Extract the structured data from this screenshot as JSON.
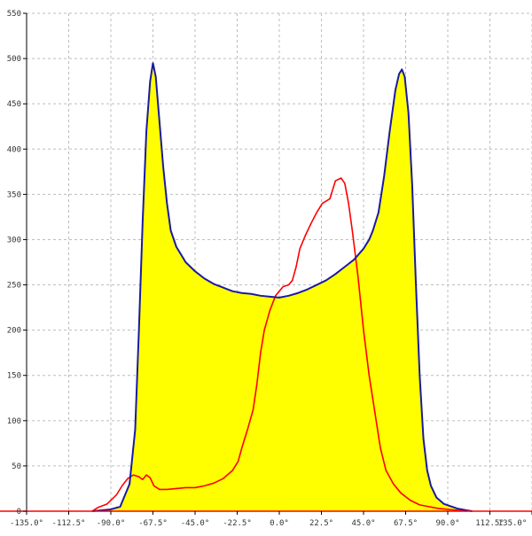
{
  "chart_data": {
    "type": "area",
    "title": "",
    "xlabel": "",
    "ylabel": "",
    "xlim": [
      -135,
      135
    ],
    "ylim": [
      0,
      550
    ],
    "grid": true,
    "legend": "none",
    "x_ticks": [
      -135,
      -112.5,
      -90,
      -67.5,
      -45,
      -22.5,
      0,
      22.5,
      45,
      67.5,
      90,
      112.5,
      135
    ],
    "x_tick_labels": [
      "-135.0°",
      "-112.5°",
      "-90.0°",
      "-67.5°",
      "-45.0°",
      "-22.5°",
      "0.0°",
      "22.5°",
      "45.0°",
      "67.5°",
      "90.0°",
      "112.5°",
      "135.0°"
    ],
    "y_ticks": [
      0,
      50,
      100,
      150,
      200,
      250,
      300,
      350,
      400,
      450,
      500,
      550
    ],
    "y_tick_labels": [
      "0",
      "50",
      "100",
      "150",
      "200",
      "250",
      "300",
      "350",
      "400",
      "450",
      "500",
      "550"
    ],
    "series": [
      {
        "color": "#1a1aa0",
        "fill": "#ffff00",
        "points": [
          [
            -100,
            0
          ],
          [
            -90,
            2
          ],
          [
            -85,
            5
          ],
          [
            -80,
            30
          ],
          [
            -77,
            90
          ],
          [
            -75,
            200
          ],
          [
            -73,
            320
          ],
          [
            -71,
            420
          ],
          [
            -69,
            475
          ],
          [
            -67.5,
            495
          ],
          [
            -66,
            480
          ],
          [
            -64,
            430
          ],
          [
            -62,
            380
          ],
          [
            -60,
            340
          ],
          [
            -58,
            310
          ],
          [
            -55,
            292
          ],
          [
            -50,
            275
          ],
          [
            -45,
            265
          ],
          [
            -40,
            257
          ],
          [
            -35,
            251
          ],
          [
            -30,
            247
          ],
          [
            -25,
            243
          ],
          [
            -20,
            241
          ],
          [
            -15,
            240
          ],
          [
            -10,
            238
          ],
          [
            -5,
            237
          ],
          [
            0,
            236
          ],
          [
            5,
            238
          ],
          [
            10,
            241
          ],
          [
            15,
            245
          ],
          [
            20,
            250
          ],
          [
            25,
            255
          ],
          [
            30,
            262
          ],
          [
            35,
            270
          ],
          [
            40,
            278
          ],
          [
            45,
            290
          ],
          [
            48,
            300
          ],
          [
            50,
            310
          ],
          [
            53,
            330
          ],
          [
            56,
            370
          ],
          [
            59,
            420
          ],
          [
            62,
            465
          ],
          [
            64,
            483
          ],
          [
            65.5,
            488
          ],
          [
            67,
            480
          ],
          [
            69,
            440
          ],
          [
            71,
            360
          ],
          [
            73,
            250
          ],
          [
            75,
            150
          ],
          [
            77,
            80
          ],
          [
            79,
            45
          ],
          [
            81,
            28
          ],
          [
            84,
            15
          ],
          [
            88,
            8
          ],
          [
            95,
            3
          ],
          [
            100,
            1
          ],
          [
            103,
            0
          ]
        ]
      },
      {
        "color": "#ff0000",
        "points": [
          [
            -100,
            0
          ],
          [
            -97,
            4
          ],
          [
            -92,
            8
          ],
          [
            -87,
            18
          ],
          [
            -84,
            28
          ],
          [
            -81,
            36
          ],
          [
            -78,
            40
          ],
          [
            -75,
            38
          ],
          [
            -73,
            35
          ],
          [
            -71,
            40
          ],
          [
            -69,
            37
          ],
          [
            -67,
            28
          ],
          [
            -64,
            24
          ],
          [
            -60,
            24
          ],
          [
            -55,
            25
          ],
          [
            -50,
            26
          ],
          [
            -45,
            26
          ],
          [
            -40,
            28
          ],
          [
            -35,
            31
          ],
          [
            -30,
            36
          ],
          [
            -25,
            45
          ],
          [
            -22,
            55
          ],
          [
            -20,
            70
          ],
          [
            -17,
            90
          ],
          [
            -14,
            112
          ],
          [
            -12,
            140
          ],
          [
            -10,
            175
          ],
          [
            -8,
            200
          ],
          [
            -5,
            222
          ],
          [
            -2,
            238
          ],
          [
            2,
            248
          ],
          [
            5,
            250
          ],
          [
            7,
            255
          ],
          [
            9,
            270
          ],
          [
            11,
            290
          ],
          [
            14,
            305
          ],
          [
            17,
            318
          ],
          [
            20,
            330
          ],
          [
            23,
            340
          ],
          [
            27,
            345
          ],
          [
            30,
            365
          ],
          [
            33,
            368
          ],
          [
            35,
            362
          ],
          [
            37,
            340
          ],
          [
            39,
            310
          ],
          [
            42,
            260
          ],
          [
            45,
            200
          ],
          [
            48,
            150
          ],
          [
            51,
            110
          ],
          [
            54,
            70
          ],
          [
            57,
            45
          ],
          [
            61,
            30
          ],
          [
            65,
            20
          ],
          [
            70,
            12
          ],
          [
            75,
            7
          ],
          [
            80,
            5
          ],
          [
            85,
            3
          ],
          [
            95,
            1
          ],
          [
            100,
            0
          ]
        ]
      }
    ]
  }
}
